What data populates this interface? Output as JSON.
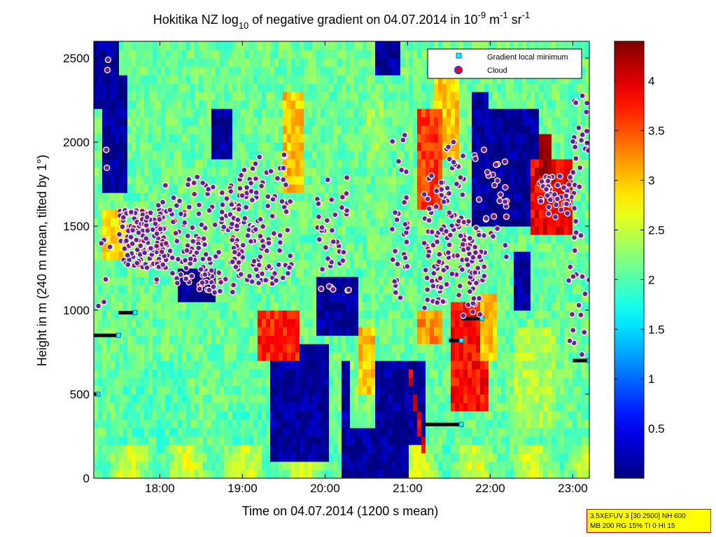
{
  "chart_data": {
    "type": "heatmap",
    "title": "Hokitika NZ log10 of negative gradient on 04.07.2014 in 10^-9 m^-1 sr^-1",
    "title_parts": {
      "a": "Hokitika NZ log",
      "sub10": "10",
      "b": " of negative gradient on 04.07.2014 in 10",
      "sup1": "-9",
      "c": " m",
      "sup2": "-1",
      "d": " sr",
      "sup3": "-1"
    },
    "xlabel": "Time on 04.07.2014 (1200 s mean)",
    "ylabel": "Height in m (240 m mean, tilted by 1°)",
    "xlim": [
      17.2,
      23.2
    ],
    "ylim": [
      0,
      2600
    ],
    "x_ticks": [
      {
        "value": 18,
        "label": "18:00"
      },
      {
        "value": 19,
        "label": "19:00"
      },
      {
        "value": 20,
        "label": "20:00"
      },
      {
        "value": 21,
        "label": "21:00"
      },
      {
        "value": 22,
        "label": "22:00"
      },
      {
        "value": 23,
        "label": "23:00"
      }
    ],
    "y_ticks": [
      0,
      500,
      1000,
      1500,
      2000,
      2500
    ],
    "colorbar": {
      "range": [
        0,
        4.4
      ],
      "ticks": [
        "0.5",
        "1",
        "1.5",
        "2",
        "2.5",
        "3",
        "3.5",
        "4"
      ],
      "tick_values": [
        0.5,
        1,
        1.5,
        2,
        2.5,
        3,
        3.5,
        4
      ],
      "colormap": "jet"
    },
    "legend": {
      "position": "top-right",
      "entries": [
        {
          "label": "Gradient local minimum",
          "marker": "square",
          "color": "#00ffff"
        },
        {
          "label": "Cloud",
          "marker": "circle",
          "color": "#ff0000"
        }
      ]
    },
    "cloud_clusters": [
      {
        "t0": 17.5,
        "t1": 18.1,
        "h0": 1250,
        "h1": 1600,
        "n": 140
      },
      {
        "t0": 17.95,
        "t1": 18.3,
        "h0": 1100,
        "h1": 1750,
        "n": 40
      },
      {
        "t0": 18.3,
        "t1": 19.0,
        "h0": 1100,
        "h1": 1800,
        "n": 110
      },
      {
        "t0": 18.85,
        "t1": 19.25,
        "h0": 1150,
        "h1": 1850,
        "n": 70
      },
      {
        "t0": 19.1,
        "t1": 19.6,
        "h0": 1150,
        "h1": 1950,
        "n": 60
      },
      {
        "t0": 19.9,
        "t1": 20.3,
        "h0": 1100,
        "h1": 1800,
        "n": 40
      },
      {
        "t0": 20.8,
        "t1": 21.0,
        "h0": 1050,
        "h1": 2050,
        "n": 30
      },
      {
        "t0": 21.2,
        "t1": 21.5,
        "h0": 1000,
        "h1": 1800,
        "n": 70
      },
      {
        "t0": 21.45,
        "t1": 21.7,
        "h0": 1200,
        "h1": 2050,
        "n": 40
      },
      {
        "t0": 21.6,
        "t1": 21.95,
        "h0": 950,
        "h1": 1550,
        "n": 60
      },
      {
        "t0": 21.8,
        "t1": 22.2,
        "h0": 1200,
        "h1": 2000,
        "n": 30
      },
      {
        "t0": 22.6,
        "t1": 23.05,
        "h0": 1550,
        "h1": 1800,
        "n": 45
      },
      {
        "t0": 22.95,
        "t1": 23.2,
        "h0": 700,
        "h1": 2300,
        "n": 40
      },
      {
        "t0": 17.2,
        "t1": 17.4,
        "h0": 950,
        "h1": 2500,
        "n": 10
      }
    ],
    "gradient_minima_segments": [
      {
        "t0": 17.2,
        "t1": 17.5,
        "h": 850
      },
      {
        "t0": 17.5,
        "t1": 17.7,
        "h": 985
      },
      {
        "t0": 17.2,
        "t1": 17.25,
        "h": 500
      },
      {
        "t0": 21.2,
        "t1": 21.65,
        "h": 320
      },
      {
        "t0": 21.5,
        "t1": 21.65,
        "h": 820
      },
      {
        "t0": 21.65,
        "t1": 21.9,
        "h": 950
      },
      {
        "t0": 23.0,
        "t1": 23.2,
        "h": 700
      }
    ]
  },
  "info_box": {
    "line1": "3.5XEFUV 3 [30 2500] NH 600",
    "line2": "MB 200 RG 15% TI 0 HI 15"
  }
}
